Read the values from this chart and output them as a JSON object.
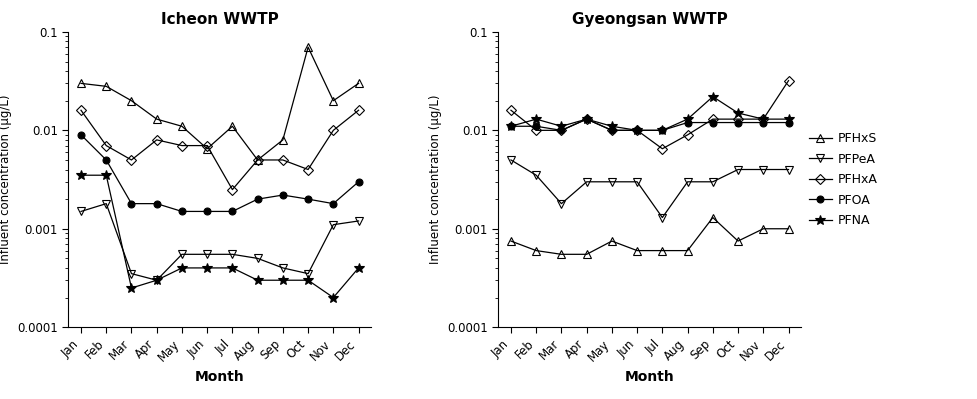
{
  "months": [
    "Jan",
    "Feb",
    "Mar",
    "Apr",
    "May",
    "Jun",
    "Jul",
    "Aug",
    "Sep",
    "Oct",
    "Nov",
    "Dec"
  ],
  "icheon": {
    "title": "Icheon WWTP",
    "PFHxS": [
      0.03,
      0.028,
      0.02,
      0.013,
      0.011,
      0.0065,
      0.011,
      0.005,
      0.008,
      0.07,
      0.02,
      0.03
    ],
    "PFPeA": [
      0.0015,
      0.0018,
      0.00035,
      0.0003,
      0.00055,
      0.00055,
      0.00055,
      0.0005,
      0.0004,
      0.00035,
      0.0011,
      0.0012
    ],
    "PFHxA": [
      0.016,
      0.007,
      0.005,
      0.008,
      0.007,
      0.007,
      0.0025,
      0.005,
      0.005,
      0.004,
      0.01,
      0.016
    ],
    "PFOA": [
      0.009,
      0.005,
      0.0018,
      0.0018,
      0.0015,
      0.0015,
      0.0015,
      0.002,
      0.0022,
      0.002,
      0.0018,
      0.003
    ],
    "PFNA": [
      0.0035,
      0.0035,
      0.00025,
      0.0003,
      0.0004,
      0.0004,
      0.0004,
      0.0003,
      0.0003,
      0.0003,
      0.0002,
      0.0004
    ]
  },
  "gyeongsan": {
    "title": "Gyeongsan WWTP",
    "PFHxS": [
      0.00075,
      0.0006,
      0.00055,
      0.00055,
      0.00075,
      0.0006,
      0.0006,
      0.0006,
      0.0013,
      0.00075,
      0.001,
      0.001
    ],
    "PFPeA": [
      0.005,
      0.0035,
      0.0018,
      0.003,
      0.003,
      0.003,
      0.0013,
      0.003,
      0.003,
      0.004,
      0.004,
      0.004
    ],
    "PFHxA": [
      0.016,
      0.01,
      0.01,
      0.013,
      0.01,
      0.01,
      0.0065,
      0.009,
      0.013,
      0.013,
      0.013,
      0.032
    ],
    "PFOA": [
      0.011,
      0.011,
      0.01,
      0.013,
      0.01,
      0.01,
      0.01,
      0.012,
      0.012,
      0.012,
      0.012,
      0.012
    ],
    "PFNA": [
      0.011,
      0.013,
      0.011,
      0.013,
      0.011,
      0.01,
      0.01,
      0.013,
      0.022,
      0.015,
      0.013,
      0.013
    ]
  },
  "ylim": [
    0.0001,
    0.1
  ],
  "ylabel": "Influent concentration (μg/L)",
  "xlabel": "Month",
  "legend_labels": [
    "PFHxS",
    "PFPeA",
    "PFHxA",
    "PFOA",
    "PFNA"
  ]
}
